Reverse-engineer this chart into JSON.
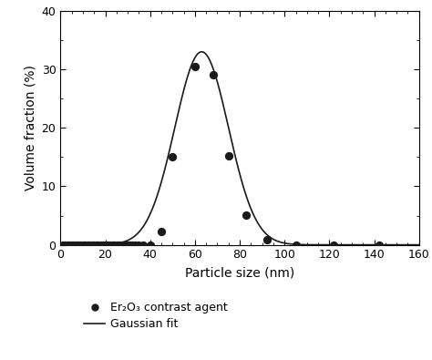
{
  "scatter_x": [
    1,
    2,
    3,
    4,
    5,
    6,
    7,
    8,
    9,
    10,
    11,
    12,
    13,
    14,
    15,
    16,
    17,
    18,
    19,
    20,
    21,
    22,
    23,
    24,
    25,
    26,
    27,
    28,
    29,
    30,
    31,
    32,
    33,
    35,
    37,
    40,
    45,
    50,
    60,
    68,
    75,
    83,
    92,
    105,
    122,
    142
  ],
  "scatter_y": [
    0,
    0,
    0,
    0,
    0,
    0,
    0,
    0,
    0,
    0,
    0,
    0,
    0,
    0,
    0,
    0,
    0,
    0,
    0,
    0,
    0,
    0,
    0,
    0,
    0,
    0,
    0,
    0,
    0,
    0,
    0,
    0,
    0,
    0,
    0,
    0,
    2.3,
    15.0,
    30.5,
    29.0,
    15.2,
    5.1,
    0.8,
    0,
    0,
    0
  ],
  "gaussian_amplitude": 33.0,
  "gaussian_mean": 63.0,
  "gaussian_sigma": 12.0,
  "xlim": [
    0,
    160
  ],
  "ylim": [
    0,
    40
  ],
  "yticks": [
    0,
    10,
    20,
    30,
    40
  ],
  "xticks": [
    0,
    20,
    40,
    60,
    80,
    100,
    120,
    140,
    160
  ],
  "xlabel": "Particle size (nm)",
  "ylabel": "Volume fraction (%)",
  "scatter_color": "#1a1a1a",
  "scatter_size": 32,
  "line_color": "#1a1a1a",
  "line_width": 1.2,
  "legend_dot_label": "Er₂O₃ contrast agent",
  "legend_line_label": "Gaussian fit",
  "background_color": "#ffffff",
  "tick_fontsize": 9,
  "label_fontsize": 10,
  "legend_fontsize": 9
}
